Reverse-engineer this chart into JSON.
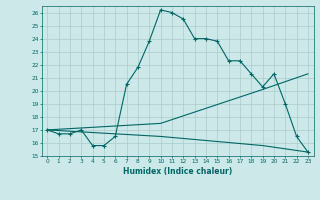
{
  "title": "",
  "xlabel": "Humidex (Indice chaleur)",
  "bg_color": "#cce8e8",
  "grid_color": "#aacccc",
  "line_color": "#006666",
  "xlim": [
    -0.5,
    23.5
  ],
  "ylim": [
    15,
    26.5
  ],
  "xticks": [
    0,
    1,
    2,
    3,
    4,
    5,
    6,
    7,
    8,
    9,
    10,
    11,
    12,
    13,
    14,
    15,
    16,
    17,
    18,
    19,
    20,
    21,
    22,
    23
  ],
  "yticks": [
    15,
    16,
    17,
    18,
    19,
    20,
    21,
    22,
    23,
    24,
    25,
    26
  ],
  "line1_x": [
    0,
    1,
    2,
    3,
    4,
    5,
    6,
    7,
    8,
    9,
    10,
    11,
    12,
    13,
    14,
    15,
    16,
    17,
    18,
    19,
    20,
    21,
    22,
    23
  ],
  "line1_y": [
    17.0,
    16.7,
    16.7,
    17.0,
    15.8,
    15.8,
    16.5,
    20.5,
    21.8,
    23.8,
    26.2,
    26.0,
    25.5,
    24.0,
    24.0,
    23.8,
    22.3,
    22.3,
    21.3,
    20.3,
    21.3,
    19.0,
    16.5,
    15.3
  ],
  "line2_x": [
    0,
    10,
    19,
    23
  ],
  "line2_y": [
    17.0,
    17.5,
    20.1,
    21.3
  ],
  "line3_x": [
    0,
    10,
    19,
    23
  ],
  "line3_y": [
    17.0,
    16.5,
    15.8,
    15.3
  ]
}
